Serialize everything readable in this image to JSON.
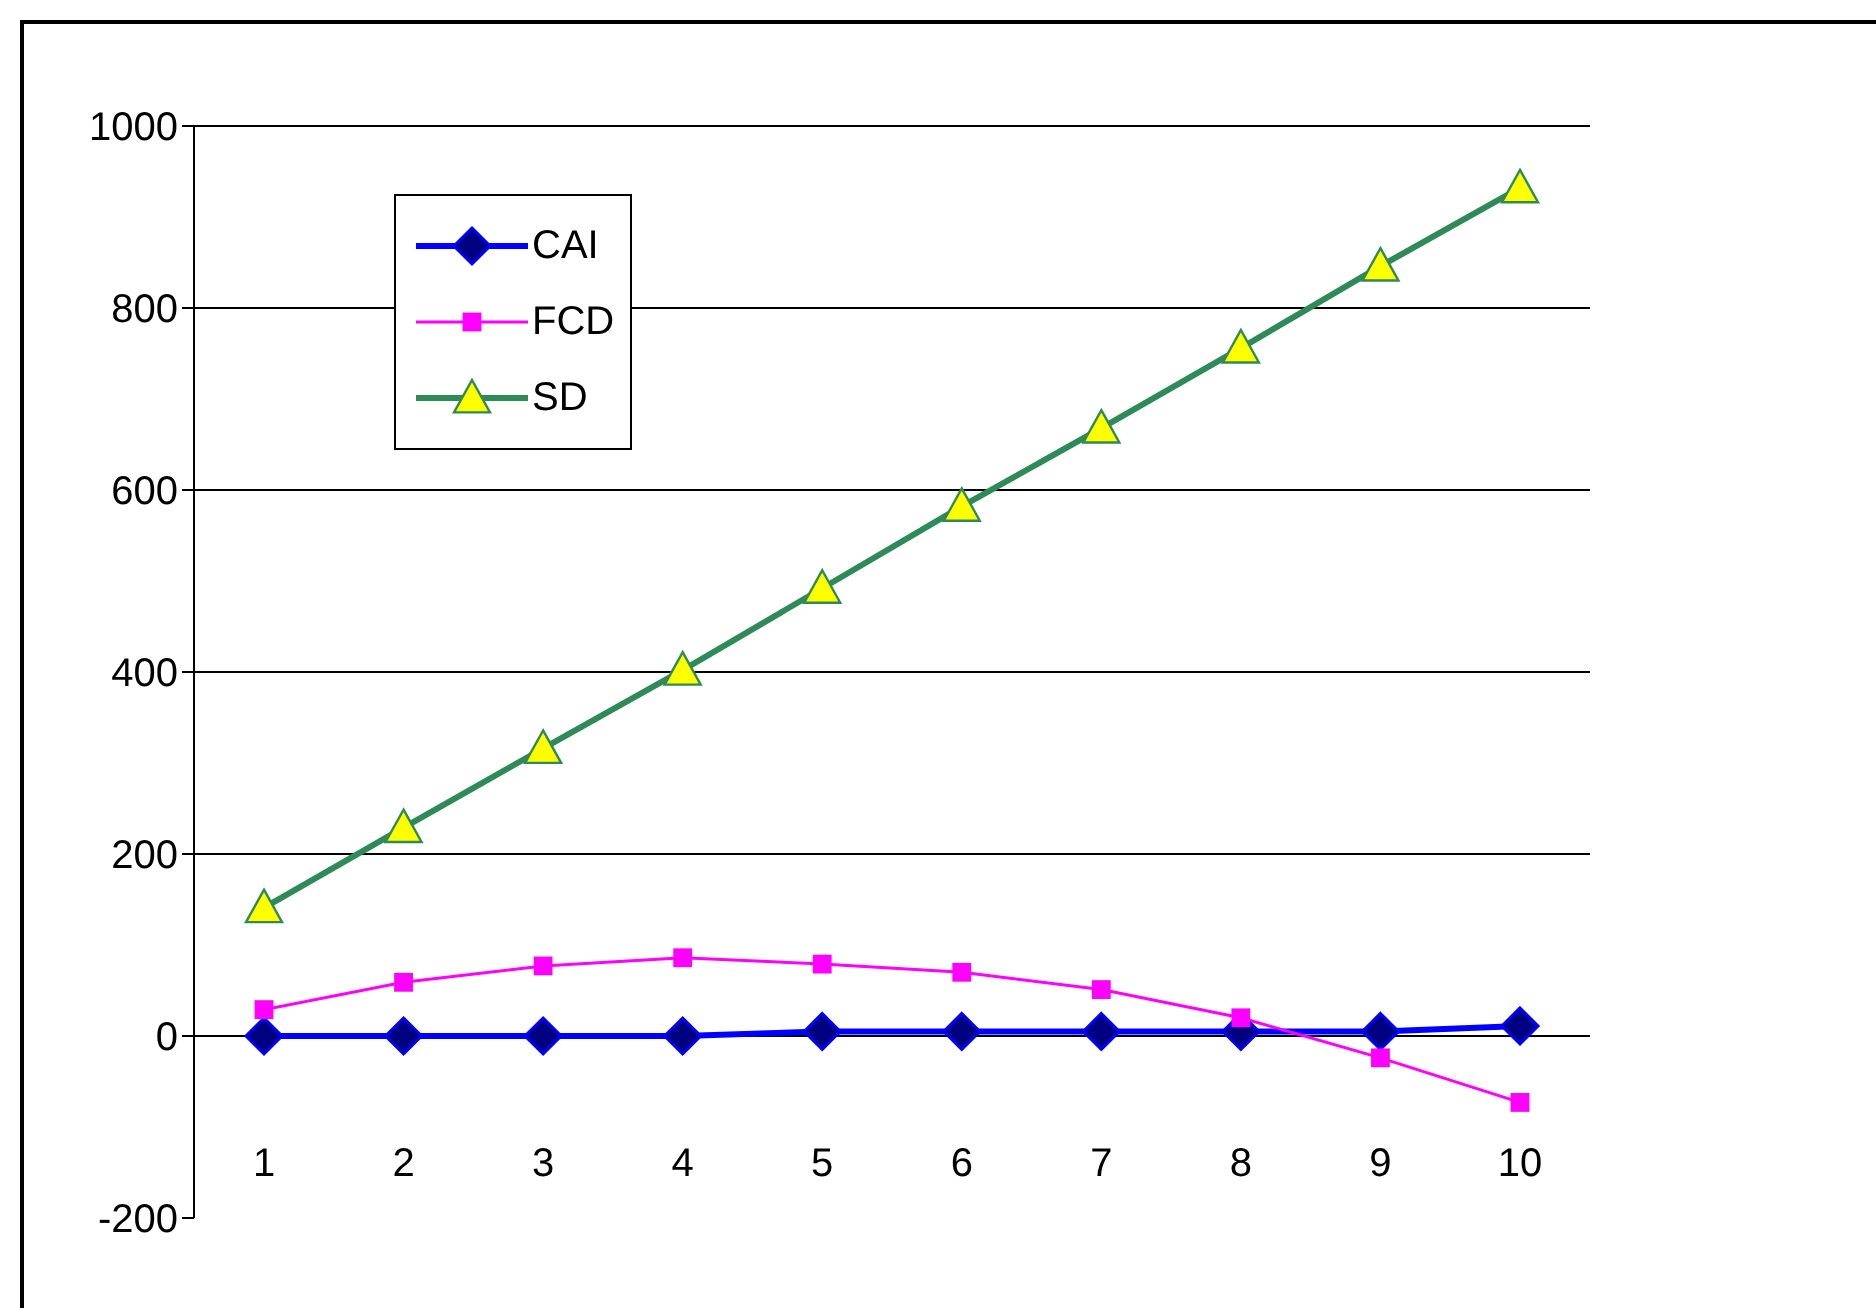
{
  "chart_data": {
    "type": "line",
    "categories": [
      "1",
      "2",
      "3",
      "4",
      "5",
      "6",
      "7",
      "8",
      "9",
      "10"
    ],
    "series": [
      {
        "name": "CAI",
        "color": "#0000ff",
        "marker": "diamond",
        "values": [
          0,
          0,
          0,
          0,
          5,
          5,
          5,
          5,
          5,
          11
        ]
      },
      {
        "name": "FCD",
        "color": "#ff00ff",
        "marker": "square",
        "values": [
          29,
          59,
          77,
          86,
          79,
          70,
          51,
          20,
          -24,
          -73
        ]
      },
      {
        "name": "SD",
        "color": "#2e8b57",
        "marker": "triangle",
        "values": [
          141,
          229,
          316,
          402,
          492,
          582,
          668,
          756,
          846,
          932
        ]
      }
    ],
    "ylim": [
      -200,
      1000
    ],
    "yticks": [
      -200,
      0,
      200,
      400,
      600,
      800,
      1000
    ],
    "grid": "y",
    "legend": "top left"
  }
}
